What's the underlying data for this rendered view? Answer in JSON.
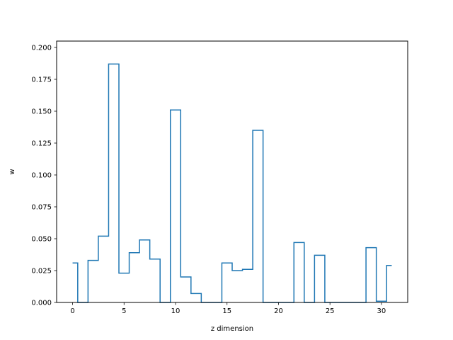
{
  "chart_data": {
    "type": "step",
    "step_where": "mid",
    "xlabel": "z dimension",
    "ylabel": "w",
    "xlim": [
      -1.55,
      32.55
    ],
    "ylim": [
      0.0,
      0.205
    ],
    "x_ticks": [
      0,
      5,
      10,
      15,
      20,
      25,
      30
    ],
    "x_tick_labels": [
      "0",
      "5",
      "10",
      "15",
      "20",
      "25",
      "30"
    ],
    "y_ticks": [
      0.0,
      0.025,
      0.05,
      0.075,
      0.1,
      0.125,
      0.15,
      0.175,
      0.2
    ],
    "y_tick_labels": [
      "0.000",
      "0.025",
      "0.050",
      "0.075",
      "0.100",
      "0.125",
      "0.150",
      "0.175",
      "0.200"
    ],
    "grid": false,
    "line_color": "#1f77b4",
    "series": [
      {
        "x": [
          0,
          1,
          2,
          3,
          4,
          5,
          6,
          7,
          8,
          9,
          10,
          11,
          12,
          13,
          14,
          15,
          16,
          17,
          18,
          19,
          20,
          21,
          22,
          23,
          24,
          25,
          26,
          27,
          28,
          29,
          30,
          31
        ],
        "values": [
          0.031,
          0.0,
          0.033,
          0.052,
          0.187,
          0.023,
          0.039,
          0.049,
          0.034,
          0.0,
          0.151,
          0.02,
          0.007,
          0.0,
          0.0,
          0.031,
          0.025,
          0.026,
          0.135,
          0.0,
          0.0,
          0.0,
          0.047,
          0.0,
          0.037,
          0.0,
          0.0,
          0.0,
          0.0,
          0.043,
          0.001,
          0.029
        ]
      }
    ]
  }
}
